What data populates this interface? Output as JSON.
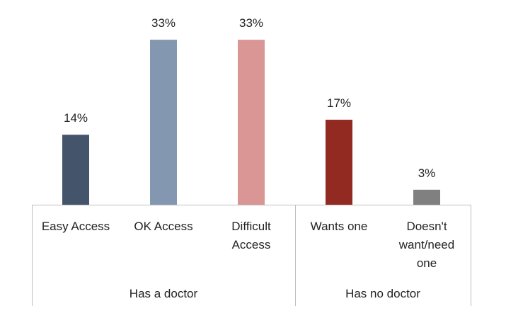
{
  "chart_data": {
    "type": "bar",
    "categories": [
      "Easy Access",
      "OK Access",
      "Difficult Access",
      "Wants one",
      "Doesn't want/need one"
    ],
    "category_lines": [
      [
        "Easy Access"
      ],
      [
        "OK Access"
      ],
      [
        "Difficult",
        "Access"
      ],
      [
        "Wants one"
      ],
      [
        "Doesn't",
        "want/need",
        "one"
      ]
    ],
    "values": [
      14,
      33,
      33,
      17,
      3
    ],
    "data_labels": [
      "14%",
      "33%",
      "33%",
      "17%",
      "3%"
    ],
    "colors": [
      "#44546A",
      "#8497B0",
      "#DA9694",
      "#922A22",
      "#808080"
    ],
    "groups": [
      {
        "label": "Has a doctor",
        "categories": [
          0,
          1,
          2
        ]
      },
      {
        "label": "Has no doctor",
        "categories": [
          3,
          4
        ]
      }
    ],
    "unit": "%",
    "ylim": [
      0,
      35
    ],
    "grid": false,
    "legend": "none"
  }
}
